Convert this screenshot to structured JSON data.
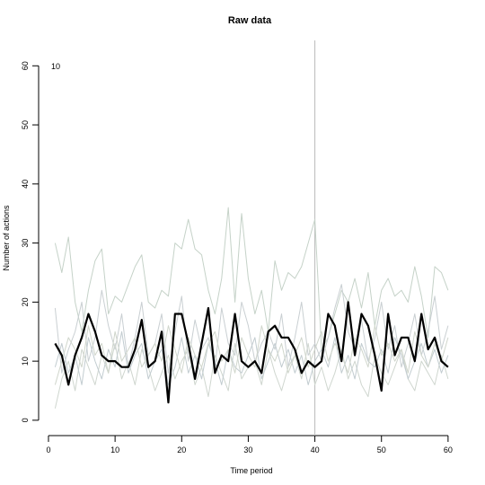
{
  "chart_data": {
    "type": "line",
    "title": "Raw data",
    "xlabel": "Time period",
    "ylabel": "Number of actions",
    "annotation": "10",
    "vline": 40,
    "xlim": [
      -1.48,
      61.5
    ],
    "ylim": [
      -2.6,
      64.3
    ],
    "xticks": [
      0,
      10,
      20,
      30,
      40,
      50,
      60
    ],
    "yticks": [
      0,
      10,
      20,
      30,
      40,
      50,
      60
    ],
    "x": [
      1,
      2,
      3,
      4,
      5,
      6,
      7,
      8,
      9,
      10,
      11,
      12,
      13,
      14,
      15,
      16,
      17,
      18,
      19,
      20,
      21,
      22,
      23,
      24,
      25,
      26,
      27,
      28,
      29,
      30,
      31,
      32,
      33,
      34,
      35,
      36,
      37,
      38,
      39,
      40,
      41,
      42,
      43,
      44,
      45,
      46,
      47,
      48,
      49,
      50,
      51,
      52,
      53,
      54,
      55,
      56,
      57,
      58,
      59,
      60
    ],
    "series": [
      {
        "color": "#c5d2c8",
        "values": [
          30,
          25,
          31,
          20,
          15,
          22,
          27,
          29,
          18,
          21,
          20,
          23,
          26,
          28,
          20,
          19,
          22,
          21,
          30,
          29,
          34,
          29,
          28,
          22,
          18,
          24,
          36,
          20,
          35,
          24,
          18,
          22,
          15,
          27,
          22,
          25,
          24,
          26,
          30,
          34,
          12,
          14,
          18,
          22,
          20,
          24,
          19,
          25,
          16,
          22,
          24,
          21,
          22,
          20,
          26,
          21,
          14,
          26,
          25,
          22
        ]
      },
      {
        "color": "#c9cfd2",
        "values": [
          19,
          8,
          12,
          15,
          20,
          10,
          14,
          22,
          16,
          12,
          18,
          9,
          14,
          20,
          11,
          13,
          18,
          8,
          15,
          21,
          10,
          17,
          12,
          14,
          9,
          19,
          13,
          11,
          20,
          16,
          10,
          13,
          15,
          12,
          18,
          9,
          14,
          20,
          11,
          13,
          10,
          14,
          19,
          23,
          15,
          12,
          17,
          10,
          14,
          20,
          12,
          16,
          9,
          13,
          18,
          11,
          15,
          21,
          12,
          16
        ]
      },
      {
        "color": "#cfd6cf",
        "values": [
          2,
          7,
          10,
          5,
          12,
          9,
          6,
          11,
          8,
          13,
          7,
          10,
          6,
          12,
          9,
          5,
          8,
          11,
          7,
          10,
          12,
          6,
          9,
          4,
          11,
          8,
          5,
          13,
          7,
          9,
          10,
          6,
          12,
          8,
          5,
          9,
          11,
          7,
          13,
          6,
          9,
          5,
          8,
          12,
          7,
          10,
          6,
          4,
          11,
          8,
          6,
          9,
          12,
          7,
          5,
          10,
          8,
          6,
          11,
          7
        ]
      },
      {
        "color": "#c2ccd0",
        "values": [
          9,
          13,
          8,
          11,
          6,
          14,
          10,
          7,
          12,
          9,
          15,
          8,
          11,
          13,
          7,
          10,
          12,
          6,
          9,
          14,
          8,
          11,
          7,
          13,
          10,
          6,
          12,
          9,
          8,
          11,
          14,
          7,
          10,
          13,
          9,
          12,
          8,
          11,
          6,
          10,
          12,
          9,
          14,
          8,
          11,
          7,
          13,
          10,
          9,
          12,
          8,
          14,
          11,
          7,
          10,
          13,
          9,
          12,
          8,
          11
        ]
      },
      {
        "color": "#d0d6cc",
        "values": [
          6,
          10,
          14,
          12,
          9,
          16,
          11,
          13,
          8,
          15,
          10,
          12,
          14,
          9,
          11,
          13,
          10,
          16,
          12,
          8,
          14,
          11,
          9,
          13,
          15,
          10,
          12,
          8,
          14,
          11,
          9,
          16,
          12,
          10,
          13,
          8,
          11,
          14,
          9,
          12,
          15,
          10,
          13,
          11,
          8,
          14,
          12,
          9,
          16,
          11,
          13,
          10,
          12,
          8,
          15,
          11,
          9,
          13,
          10,
          14
        ]
      },
      {
        "color": "#000000",
        "values": [
          13,
          11,
          6,
          11,
          14,
          18,
          15,
          11,
          10,
          10,
          9,
          9,
          12,
          17,
          9,
          10,
          15,
          3,
          18,
          18,
          13,
          7,
          13,
          19,
          8,
          11,
          10,
          18,
          10,
          9,
          10,
          8,
          15,
          16,
          14,
          14,
          12,
          8,
          10,
          9,
          10,
          18,
          16,
          10,
          20,
          11,
          18,
          16,
          11,
          5,
          18,
          11,
          14,
          14,
          10,
          18,
          12,
          14,
          10,
          9
        ]
      }
    ]
  }
}
